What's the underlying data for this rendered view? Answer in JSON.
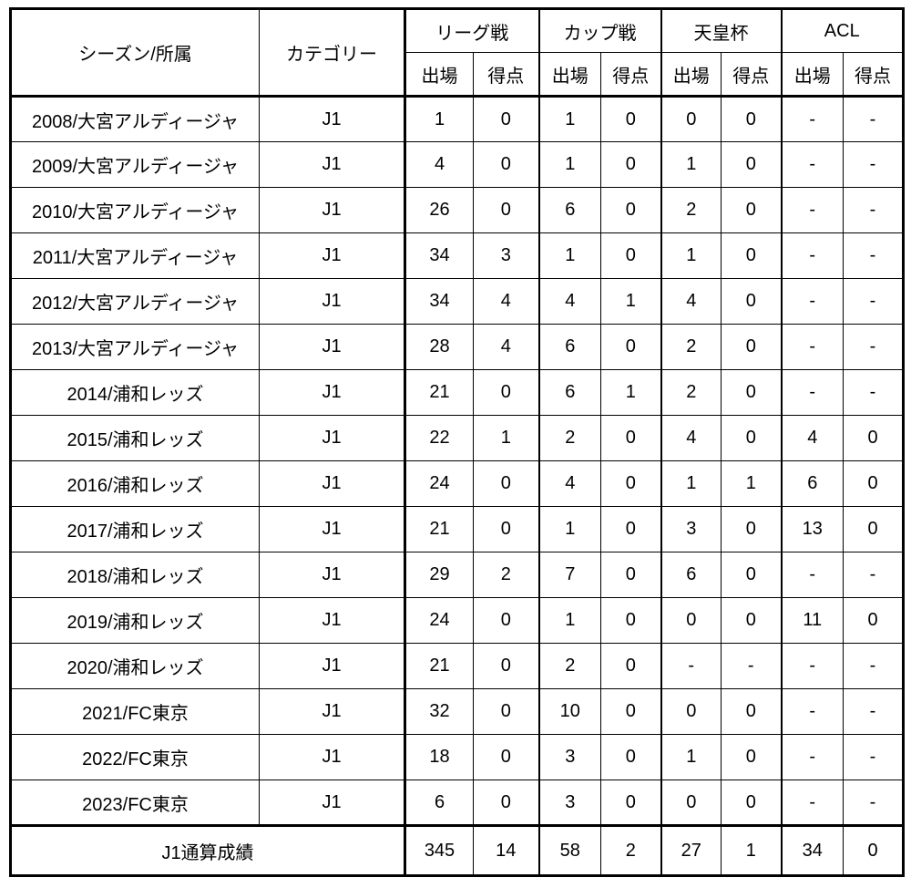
{
  "chart_data": {
    "type": "table",
    "header": {
      "season": "シーズン/所属",
      "category": "カテゴリー",
      "competitions": [
        "リーグ戦",
        "カップ戦",
        "天皇杯",
        "ACL"
      ],
      "sub": [
        "出場",
        "得点"
      ]
    },
    "rows": [
      [
        "2008/大宮アルディージャ",
        "J1",
        "1",
        "0",
        "1",
        "0",
        "0",
        "0",
        "-",
        "-"
      ],
      [
        "2009/大宮アルディージャ",
        "J1",
        "4",
        "0",
        "1",
        "0",
        "1",
        "0",
        "-",
        "-"
      ],
      [
        "2010/大宮アルディージャ",
        "J1",
        "26",
        "0",
        "6",
        "0",
        "2",
        "0",
        "-",
        "-"
      ],
      [
        "2011/大宮アルディージャ",
        "J1",
        "34",
        "3",
        "1",
        "0",
        "1",
        "0",
        "-",
        "-"
      ],
      [
        "2012/大宮アルディージャ",
        "J1",
        "34",
        "4",
        "4",
        "1",
        "4",
        "0",
        "-",
        "-"
      ],
      [
        "2013/大宮アルディージャ",
        "J1",
        "28",
        "4",
        "6",
        "0",
        "2",
        "0",
        "-",
        "-"
      ],
      [
        "2014/浦和レッズ",
        "J1",
        "21",
        "0",
        "6",
        "1",
        "2",
        "0",
        "-",
        "-"
      ],
      [
        "2015/浦和レッズ",
        "J1",
        "22",
        "1",
        "2",
        "0",
        "4",
        "0",
        "4",
        "0"
      ],
      [
        "2016/浦和レッズ",
        "J1",
        "24",
        "0",
        "4",
        "0",
        "1",
        "1",
        "6",
        "0"
      ],
      [
        "2017/浦和レッズ",
        "J1",
        "21",
        "0",
        "1",
        "0",
        "3",
        "0",
        "13",
        "0"
      ],
      [
        "2018/浦和レッズ",
        "J1",
        "29",
        "2",
        "7",
        "0",
        "6",
        "0",
        "-",
        "-"
      ],
      [
        "2019/浦和レッズ",
        "J1",
        "24",
        "0",
        "1",
        "0",
        "0",
        "0",
        "11",
        "0"
      ],
      [
        "2020/浦和レッズ",
        "J1",
        "21",
        "0",
        "2",
        "0",
        "-",
        "-",
        "-",
        "-"
      ],
      [
        "2021/FC東京",
        "J1",
        "32",
        "0",
        "10",
        "0",
        "0",
        "0",
        "-",
        "-"
      ],
      [
        "2022/FC東京",
        "J1",
        "18",
        "0",
        "3",
        "0",
        "1",
        "0",
        "-",
        "-"
      ],
      [
        "2023/FC東京",
        "J1",
        "6",
        "0",
        "3",
        "0",
        "0",
        "0",
        "-",
        "-"
      ]
    ],
    "total": [
      "J1通算成績",
      "345",
      "14",
      "58",
      "2",
      "27",
      "1",
      "34",
      "0"
    ]
  }
}
